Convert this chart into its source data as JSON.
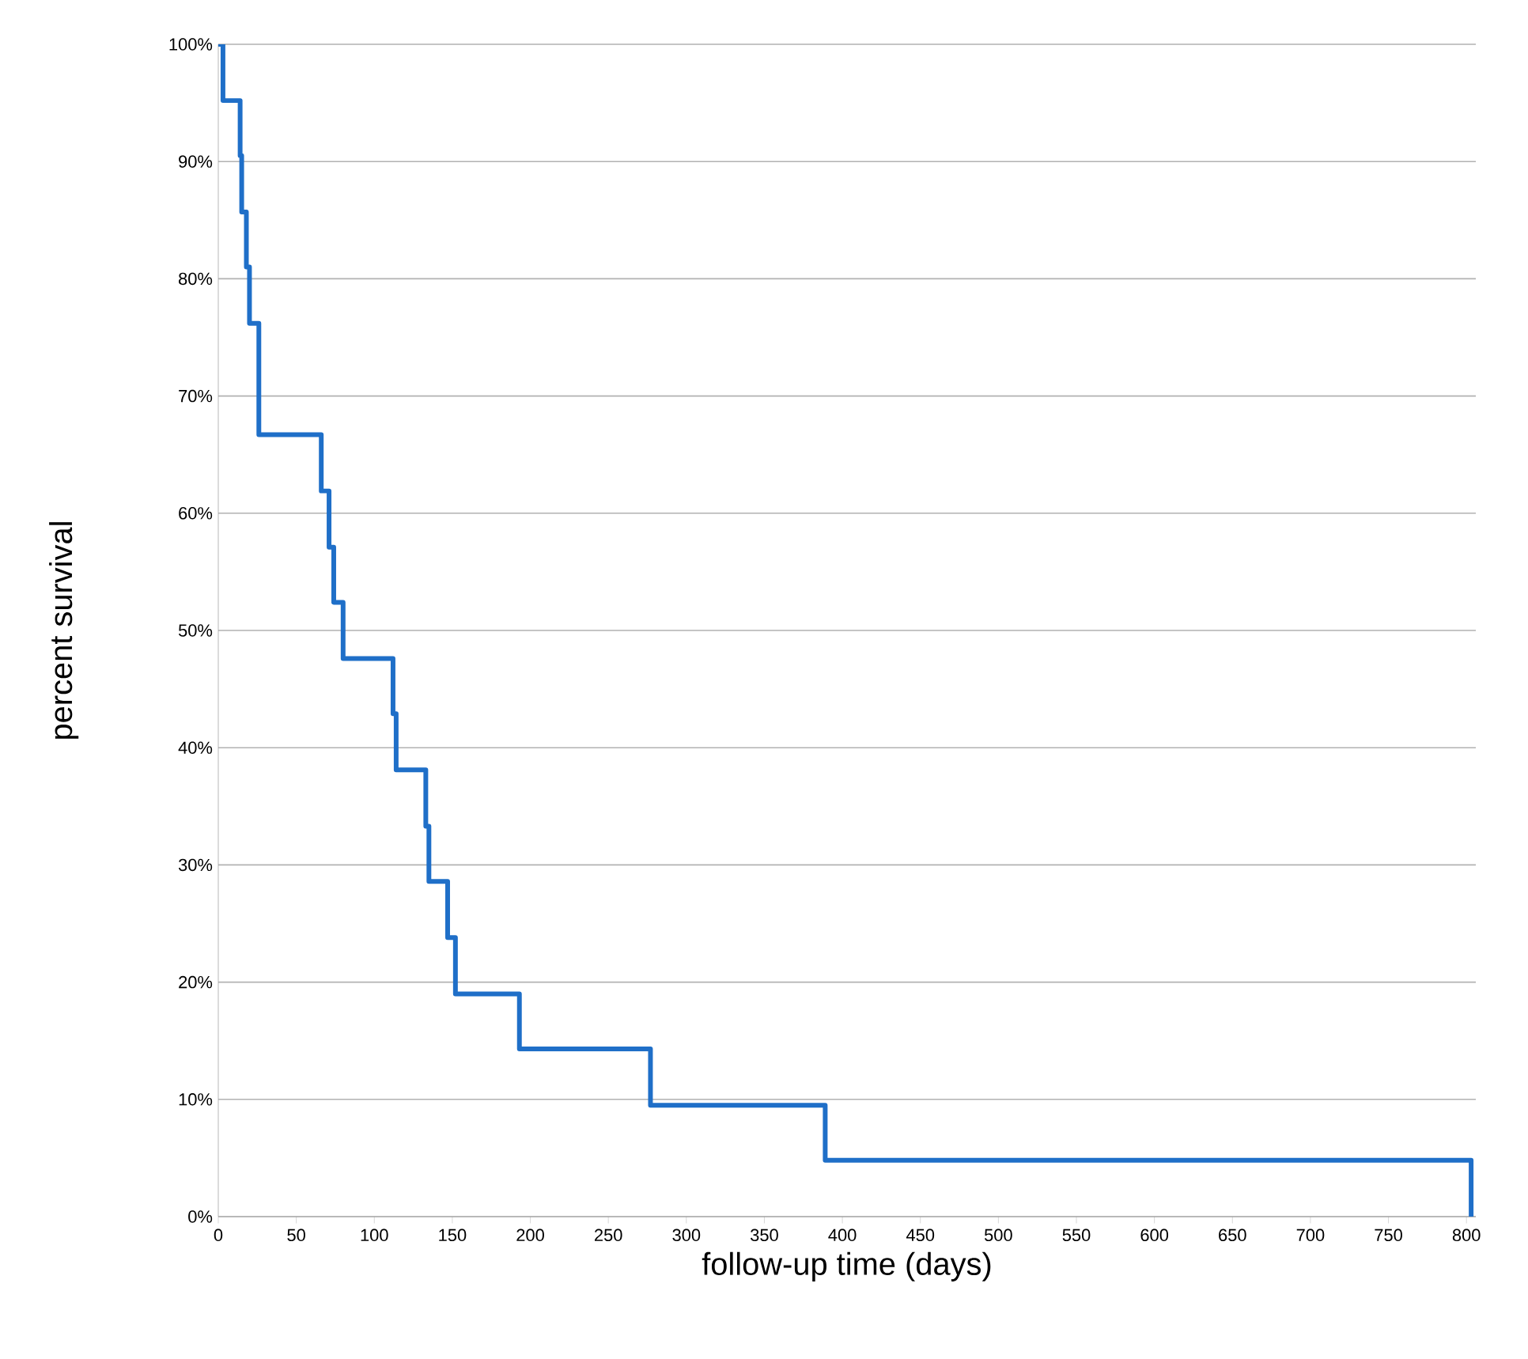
{
  "chart_data": {
    "type": "step",
    "xlabel": "follow-up time (days)",
    "ylabel": "percent survival",
    "x": [
      0,
      3,
      14,
      15,
      18,
      20,
      26,
      66,
      71,
      74,
      80,
      112,
      114,
      133,
      135,
      147,
      152,
      193,
      277,
      389,
      803
    ],
    "series": [
      {
        "color": "#1f6fc8",
        "values": [
          100,
          95.2,
          90.5,
          85.7,
          81.0,
          76.2,
          66.7,
          61.9,
          57.1,
          52.4,
          47.6,
          42.9,
          38.1,
          33.3,
          28.6,
          23.8,
          19.0,
          14.3,
          9.5,
          4.8,
          0
        ]
      }
    ],
    "xlim": [
      0,
      806
    ],
    "ylim": [
      0,
      100
    ],
    "xticks": [
      0,
      50,
      100,
      150,
      200,
      250,
      300,
      350,
      400,
      450,
      500,
      550,
      600,
      650,
      700,
      750,
      800
    ],
    "yticks": [
      {
        "value": 0,
        "label": "0%"
      },
      {
        "value": 10,
        "label": "10%"
      },
      {
        "value": 20,
        "label": "20%"
      },
      {
        "value": 30,
        "label": "30%"
      },
      {
        "value": 40,
        "label": "40%"
      },
      {
        "value": 50,
        "label": "50%"
      },
      {
        "value": 60,
        "label": "60%"
      },
      {
        "value": 70,
        "label": "70%"
      },
      {
        "value": 80,
        "label": "80%"
      },
      {
        "value": 90,
        "label": "90%"
      },
      {
        "value": 100,
        "label": "100%"
      }
    ],
    "grid": "y",
    "marker": "none",
    "line_style": "solid"
  }
}
